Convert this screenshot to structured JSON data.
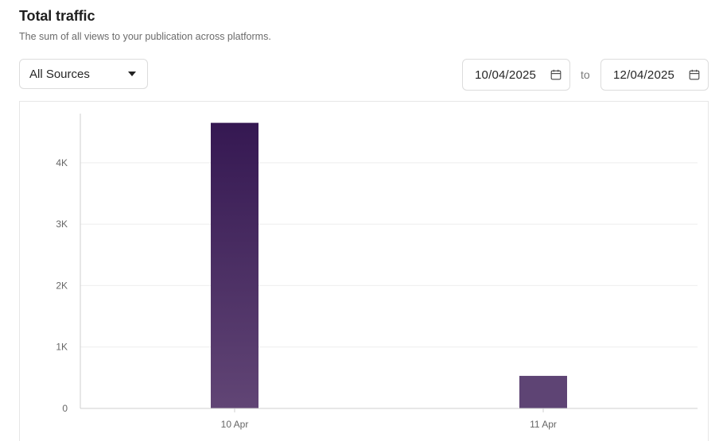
{
  "header": {
    "title": "Total traffic",
    "subtitle": "The sum of all views to your publication across platforms."
  },
  "filters": {
    "source_select": {
      "selected": "All Sources"
    },
    "date_from": "10/04/2025",
    "to_label": "to",
    "date_to": "12/04/2025"
  },
  "colors": {
    "bar_top": "#351852",
    "bar_bottom": "#614575",
    "bar_flat": "#5e4474",
    "grid": "#eeeeee",
    "axis": "#cfcfcf"
  },
  "icons": {
    "dropdown": "chevron-down-icon",
    "calendar": "calendar-icon"
  },
  "chart_data": {
    "type": "bar",
    "categories": [
      "10 Apr",
      "11 Apr"
    ],
    "values": [
      4650,
      530
    ],
    "ylim": [
      0,
      4800
    ],
    "yticks": [
      0,
      1000,
      2000,
      3000,
      4000
    ],
    "ytick_labels": [
      "0",
      "1K",
      "2K",
      "3K",
      "4K"
    ],
    "grid": true
  }
}
